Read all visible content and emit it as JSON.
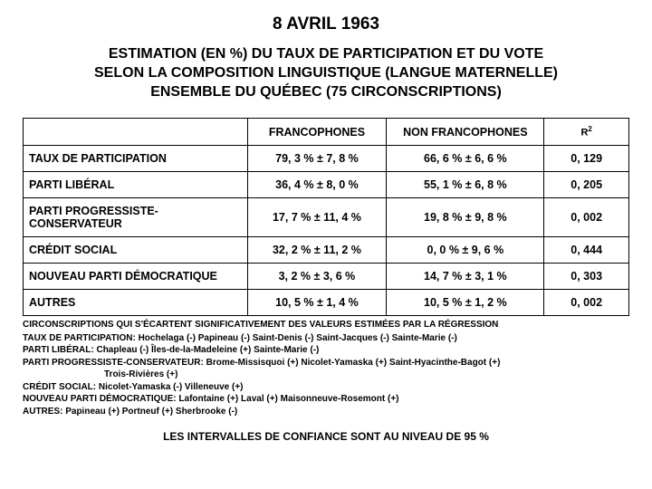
{
  "title_main": "8 AVRIL 1963",
  "title_sub_line1": "ESTIMATION (EN %) DU TAUX DE PARTICIPATION ET DU VOTE",
  "title_sub_line2": "SELON LA COMPOSITION LINGUISTIQUE (LANGUE MATERNELLE)",
  "title_sub_line3": "ENSEMBLE DU QUÉBEC (75 CIRCONSCRIPTIONS)",
  "table": {
    "columns": [
      "",
      "FRANCOPHONES",
      "NON FRANCOPHONES",
      "R²"
    ],
    "rows": [
      {
        "label": "TAUX DE PARTICIPATION",
        "franco": "79, 3 % ± 7, 8 %",
        "nonfranco": "66, 6 % ± 6, 6 %",
        "r2": "0, 129"
      },
      {
        "label": "PARTI LIBÉRAL",
        "franco": "36, 4 % ± 8, 0 %",
        "nonfranco": "55, 1 % ± 6, 8 %",
        "r2": "0, 205"
      },
      {
        "label": "PARTI PROGRESSISTE-CONSERVATEUR",
        "franco": "17, 7 % ± 11, 4 %",
        "nonfranco": "19, 8 % ± 9, 8 %",
        "r2": "0, 002"
      },
      {
        "label": "CRÉDIT SOCIAL",
        "franco": "32, 2 % ± 11, 2 %",
        "nonfranco": "0, 0 % ± 9, 6 %",
        "r2": "0, 444"
      },
      {
        "label": "NOUVEAU PARTI DÉMOCRATIQUE",
        "franco": "3, 2 % ± 3, 6 %",
        "nonfranco": "14, 7 % ± 3, 1 %",
        "r2": "0, 303"
      },
      {
        "label": "AUTRES",
        "franco": "10, 5 % ± 1, 4 %",
        "nonfranco": "10, 5 % ± 1, 2 %",
        "r2": "0, 002"
      }
    ]
  },
  "footnotes": {
    "header": "CIRCONSCRIPTIONS QUI S'ÉCARTENT SIGNIFICATIVEMENT DES VALEURS ESTIMÉES PAR LA RÉGRESSION",
    "lines": [
      "TAUX DE PARTICIPATION: Hochelaga (-) Papineau (-) Saint-Denis (-) Saint-Jacques (-) Sainte-Marie (-)",
      "PARTI LIBÉRAL: Chapleau (-) Îles-de-la-Madeleine (+) Sainte-Marie (-)",
      "PARTI PROGRESSISTE-CONSERVATEUR: Brome-Missisquoi (+) Nicolet-Yamaska (+) Saint-Hyacinthe-Bagot (+)"
    ],
    "indent_line": "Trois-Rivières (+)",
    "lines2": [
      "CRÉDIT SOCIAL: Nicolet-Yamaska (-) Villeneuve (+)",
      "NOUVEAU PARTI DÉMOCRATIQUE: Lafontaine (+) Laval (+) Maisonneuve-Rosemont (+)",
      "AUTRES: Papineau (+) Portneuf (+) Sherbrooke (-)"
    ]
  },
  "final_note": "LES INTERVALLES DE CONFIANCE SONT AU NIVEAU DE 95 %",
  "style": {
    "page_bg": "#ffffff",
    "text_color": "#000000",
    "border_color": "#000000",
    "font_family": "Arial",
    "title_fontsize": 19,
    "subtitle_fontsize": 16,
    "cell_fontsize": 12.5,
    "footnote_fontsize": 10
  }
}
